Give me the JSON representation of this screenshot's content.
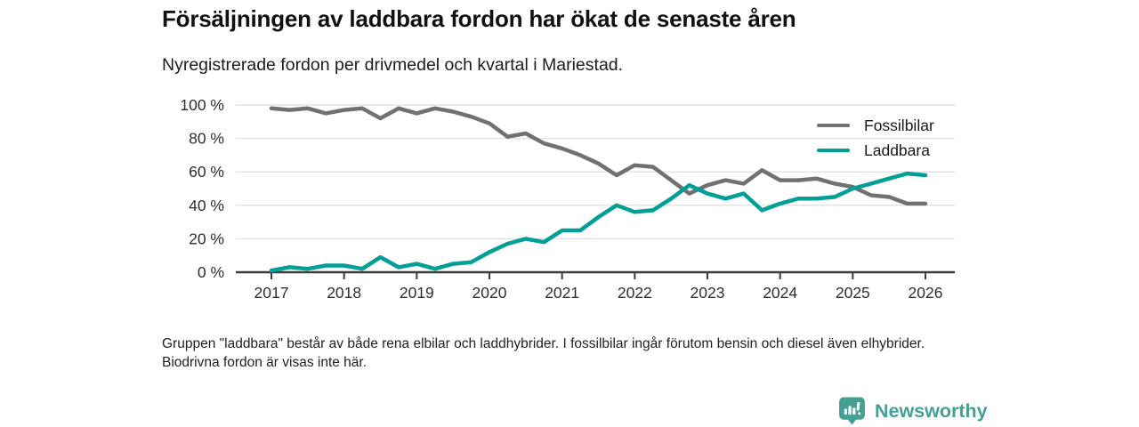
{
  "header": {
    "title": "Försäljningen av laddbara fordon har ökat de senaste åren",
    "subtitle": "Nyregistrerade fordon per drivmedel och kvartal i Mariestad."
  },
  "chart_data": {
    "type": "line",
    "x_unit": "quarter",
    "x_start": "2017 Q1",
    "x_end": "2026 Q1",
    "x_tick_labels": [
      "2017",
      "2018",
      "2019",
      "2020",
      "2021",
      "2022",
      "2023",
      "2024",
      "2025",
      "2026"
    ],
    "y_ticks": [
      100,
      80,
      60,
      40,
      20,
      0
    ],
    "y_tick_labels": [
      "100 %",
      "80 %",
      "60 %",
      "40 %",
      "20 %",
      "0 %"
    ],
    "ylim": [
      0,
      100
    ],
    "grid": true,
    "legend_position": "top-right",
    "series": [
      {
        "name": "Fossilbilar",
        "color": "#717171",
        "values": [
          98,
          97,
          98,
          95,
          97,
          98,
          92,
          98,
          95,
          98,
          96,
          93,
          89,
          81,
          83,
          77,
          74,
          70,
          65,
          58,
          64,
          63,
          55,
          47,
          52,
          55,
          53,
          61,
          55,
          55,
          56,
          53,
          51,
          46,
          45,
          41,
          41
        ]
      },
      {
        "name": "Laddbara",
        "color": "#00a096",
        "values": [
          1,
          3,
          2,
          4,
          4,
          2,
          9,
          3,
          5,
          2,
          5,
          6,
          12,
          17,
          20,
          18,
          25,
          25,
          33,
          40,
          36,
          37,
          44,
          52,
          47,
          44,
          47,
          37,
          41,
          44,
          44,
          45,
          50,
          53,
          56,
          59,
          58
        ]
      }
    ]
  },
  "footnote": "Gruppen \"laddbara\" består av både rena elbilar och laddhybrider. I fossilbilar ingår förutom bensin och diesel även elhybrider. Biodrivna fordon är visas inte här.",
  "logo": {
    "text": "Newsworthy",
    "color": "#44a092",
    "icon": "bar-chart-speech-bubble"
  }
}
